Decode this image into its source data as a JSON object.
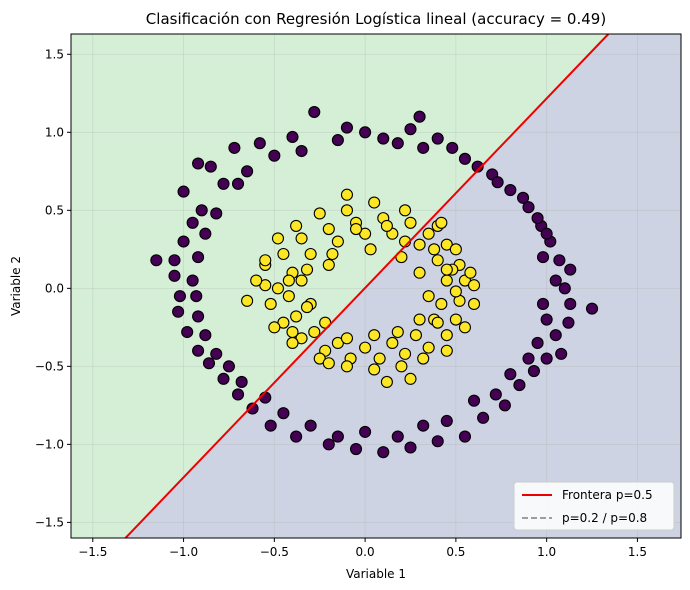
{
  "chart_data": {
    "type": "scatter",
    "title": "Clasificación con Regresión Logística lineal (accuracy = 0.49)",
    "xlabel": "Variable 1",
    "ylabel": "Variable 2",
    "xlim": [
      -1.62,
      1.74
    ],
    "ylim": [
      -1.6,
      1.63
    ],
    "xticks": [
      -1.5,
      -1.0,
      -0.5,
      0.0,
      0.5,
      1.0,
      1.5
    ],
    "yticks": [
      -1.5,
      -1.0,
      -0.5,
      0.0,
      0.5,
      1.0,
      1.5
    ],
    "xtick_labels": [
      "−1.5",
      "−1.0",
      "−0.5",
      "0.0",
      "0.5",
      "1.0",
      "1.5"
    ],
    "ytick_labels": [
      "−1.5",
      "−1.0",
      "−0.5",
      "0.0",
      "0.5",
      "1.0",
      "1.5"
    ],
    "grid": true,
    "legend_position": "bottom-right",
    "decision_boundary": {
      "x": [
        -1.32,
        1.34
      ],
      "y": [
        -1.6,
        1.63
      ]
    },
    "regions": {
      "upper_left_color": "#d5efd6",
      "lower_right_color": "#cdd3e2"
    },
    "legend": [
      {
        "label": "Frontera p=0.5",
        "style": "solid",
        "color": "#ee0000"
      },
      {
        "label": "p=0.2 / p=0.8",
        "style": "dashed",
        "color": "#808080"
      }
    ],
    "series": [
      {
        "class": 0,
        "color": "#440154",
        "points": [
          [
            -1.0,
            0.62
          ],
          [
            -0.92,
            0.8
          ],
          [
            -0.85,
            0.78
          ],
          [
            -0.72,
            0.9
          ],
          [
            -0.58,
            0.93
          ],
          [
            -0.4,
            0.97
          ],
          [
            -0.28,
            1.13
          ],
          [
            -0.1,
            1.03
          ],
          [
            0.1,
            0.96
          ],
          [
            0.25,
            1.02
          ],
          [
            0.4,
            0.96
          ],
          [
            0.55,
            0.83
          ],
          [
            0.7,
            0.73
          ],
          [
            0.8,
            0.63
          ],
          [
            0.9,
            0.52
          ],
          [
            0.97,
            0.4
          ],
          [
            1.02,
            0.3
          ],
          [
            1.07,
            0.18
          ],
          [
            1.13,
            0.12
          ],
          [
            1.1,
            0.0
          ],
          [
            1.13,
            -0.1
          ],
          [
            1.12,
            -0.22
          ],
          [
            1.05,
            -0.3
          ],
          [
            1.0,
            -0.45
          ],
          [
            0.93,
            -0.53
          ],
          [
            0.85,
            -0.62
          ],
          [
            0.77,
            -0.75
          ],
          [
            0.65,
            -0.83
          ],
          [
            0.55,
            -0.95
          ],
          [
            0.4,
            -0.98
          ],
          [
            0.25,
            -1.02
          ],
          [
            0.1,
            -1.05
          ],
          [
            -0.05,
            -1.03
          ],
          [
            -0.2,
            -1.0
          ],
          [
            -0.38,
            -0.95
          ],
          [
            -0.52,
            -0.88
          ],
          [
            -0.62,
            -0.77
          ],
          [
            -0.7,
            -0.68
          ],
          [
            -0.78,
            -0.58
          ],
          [
            -0.86,
            -0.48
          ],
          [
            -0.92,
            -0.4
          ],
          [
            -0.98,
            -0.28
          ],
          [
            -1.03,
            -0.15
          ],
          [
            -1.02,
            -0.05
          ],
          [
            -1.05,
            0.08
          ],
          [
            -1.05,
            0.18
          ],
          [
            -1.0,
            0.3
          ],
          [
            -0.95,
            0.42
          ],
          [
            -0.9,
            0.5
          ],
          [
            -0.78,
            0.67
          ],
          [
            -0.65,
            0.75
          ],
          [
            -0.5,
            0.85
          ],
          [
            -0.35,
            0.88
          ],
          [
            -0.15,
            0.95
          ],
          [
            0.0,
            1.0
          ],
          [
            0.18,
            0.93
          ],
          [
            0.32,
            0.9
          ],
          [
            0.48,
            0.9
          ],
          [
            0.62,
            0.78
          ],
          [
            0.73,
            0.68
          ],
          [
            0.87,
            0.58
          ],
          [
            0.95,
            0.45
          ],
          [
            1.0,
            0.35
          ],
          [
            0.98,
            0.2
          ],
          [
            1.05,
            0.05
          ],
          [
            0.98,
            -0.1
          ],
          [
            1.0,
            -0.2
          ],
          [
            0.95,
            -0.35
          ],
          [
            0.9,
            -0.45
          ],
          [
            0.8,
            -0.55
          ],
          [
            0.72,
            -0.68
          ],
          [
            0.6,
            -0.72
          ],
          [
            0.45,
            -0.85
          ],
          [
            0.32,
            -0.88
          ],
          [
            0.18,
            -0.95
          ],
          [
            0.0,
            -0.92
          ],
          [
            -0.15,
            -0.95
          ],
          [
            -0.3,
            -0.88
          ],
          [
            -0.45,
            -0.8
          ],
          [
            -0.55,
            -0.7
          ],
          [
            -0.68,
            -0.6
          ],
          [
            -0.75,
            -0.5
          ],
          [
            -0.82,
            -0.42
          ],
          [
            -0.88,
            -0.3
          ],
          [
            -0.92,
            -0.18
          ],
          [
            -0.93,
            -0.05
          ],
          [
            -0.95,
            0.05
          ],
          [
            -0.92,
            0.2
          ],
          [
            -0.88,
            0.35
          ],
          [
            -0.82,
            0.48
          ],
          [
            -1.15,
            0.18
          ],
          [
            1.25,
            -0.13
          ],
          [
            1.08,
            -0.42
          ],
          [
            -0.7,
            0.67
          ],
          [
            0.3,
            1.1
          ]
        ]
      },
      {
        "class": 1,
        "color": "#fde725",
        "points": [
          [
            -0.55,
            0.15
          ],
          [
            -0.45,
            0.22
          ],
          [
            -0.35,
            0.32
          ],
          [
            -0.2,
            0.38
          ],
          [
            -0.05,
            0.42
          ],
          [
            0.1,
            0.45
          ],
          [
            0.25,
            0.42
          ],
          [
            0.35,
            0.35
          ],
          [
            0.45,
            0.28
          ],
          [
            0.52,
            0.15
          ],
          [
            0.55,
            0.05
          ],
          [
            0.52,
            -0.08
          ],
          [
            0.5,
            -0.2
          ],
          [
            0.45,
            -0.3
          ],
          [
            0.35,
            -0.38
          ],
          [
            0.22,
            -0.42
          ],
          [
            0.08,
            -0.45
          ],
          [
            -0.08,
            -0.45
          ],
          [
            -0.22,
            -0.4
          ],
          [
            -0.35,
            -0.32
          ],
          [
            -0.45,
            -0.22
          ],
          [
            -0.52,
            -0.1
          ],
          [
            -0.55,
            0.02
          ],
          [
            -0.4,
            0.1
          ],
          [
            -0.3,
            0.22
          ],
          [
            -0.15,
            0.3
          ],
          [
            0.0,
            0.35
          ],
          [
            0.15,
            0.35
          ],
          [
            0.3,
            0.28
          ],
          [
            0.4,
            0.18
          ],
          [
            0.45,
            0.05
          ],
          [
            0.42,
            -0.1
          ],
          [
            0.38,
            -0.2
          ],
          [
            0.28,
            -0.3
          ],
          [
            0.15,
            -0.35
          ],
          [
            0.0,
            -0.38
          ],
          [
            -0.15,
            -0.35
          ],
          [
            -0.28,
            -0.28
          ],
          [
            -0.38,
            -0.18
          ],
          [
            -0.42,
            -0.05
          ],
          [
            -0.6,
            0.05
          ],
          [
            -0.5,
            -0.25
          ],
          [
            -0.4,
            -0.35
          ],
          [
            -0.25,
            -0.45
          ],
          [
            -0.1,
            -0.5
          ],
          [
            0.05,
            -0.52
          ],
          [
            0.2,
            -0.5
          ],
          [
            0.32,
            -0.45
          ],
          [
            0.45,
            -0.4
          ],
          [
            0.55,
            -0.25
          ],
          [
            0.6,
            -0.1
          ],
          [
            0.58,
            0.1
          ],
          [
            0.5,
            0.25
          ],
          [
            0.4,
            0.4
          ],
          [
            0.22,
            0.5
          ],
          [
            0.05,
            0.55
          ],
          [
            -0.1,
            0.5
          ],
          [
            -0.25,
            0.48
          ],
          [
            -0.38,
            0.4
          ],
          [
            -0.48,
            0.32
          ],
          [
            -0.35,
            0.05
          ],
          [
            -0.3,
            -0.1
          ],
          [
            0.3,
            0.1
          ],
          [
            0.35,
            -0.05
          ],
          [
            -0.2,
            0.15
          ],
          [
            0.2,
            0.2
          ],
          [
            -0.1,
            0.6
          ],
          [
            -0.65,
            -0.08
          ],
          [
            0.12,
            -0.6
          ],
          [
            0.25,
            -0.58
          ],
          [
            -0.48,
            0.0
          ],
          [
            -0.32,
            0.12
          ],
          [
            -0.18,
            0.22
          ],
          [
            0.03,
            0.25
          ],
          [
            0.22,
            0.3
          ],
          [
            0.38,
            0.25
          ],
          [
            0.48,
            0.12
          ],
          [
            0.5,
            -0.02
          ],
          [
            0.4,
            -0.22
          ],
          [
            0.3,
            -0.2
          ],
          [
            0.18,
            -0.28
          ],
          [
            0.05,
            -0.3
          ],
          [
            -0.1,
            -0.32
          ],
          [
            -0.22,
            -0.22
          ],
          [
            -0.32,
            -0.12
          ],
          [
            -0.42,
            0.05
          ],
          [
            0.12,
            0.4
          ],
          [
            -0.05,
            0.38
          ],
          [
            0.45,
            0.12
          ],
          [
            -0.4,
            -0.28
          ],
          [
            -0.55,
            0.18
          ],
          [
            0.42,
            0.42
          ],
          [
            -0.2,
            -0.48
          ],
          [
            0.6,
            0.02
          ]
        ]
      }
    ]
  }
}
